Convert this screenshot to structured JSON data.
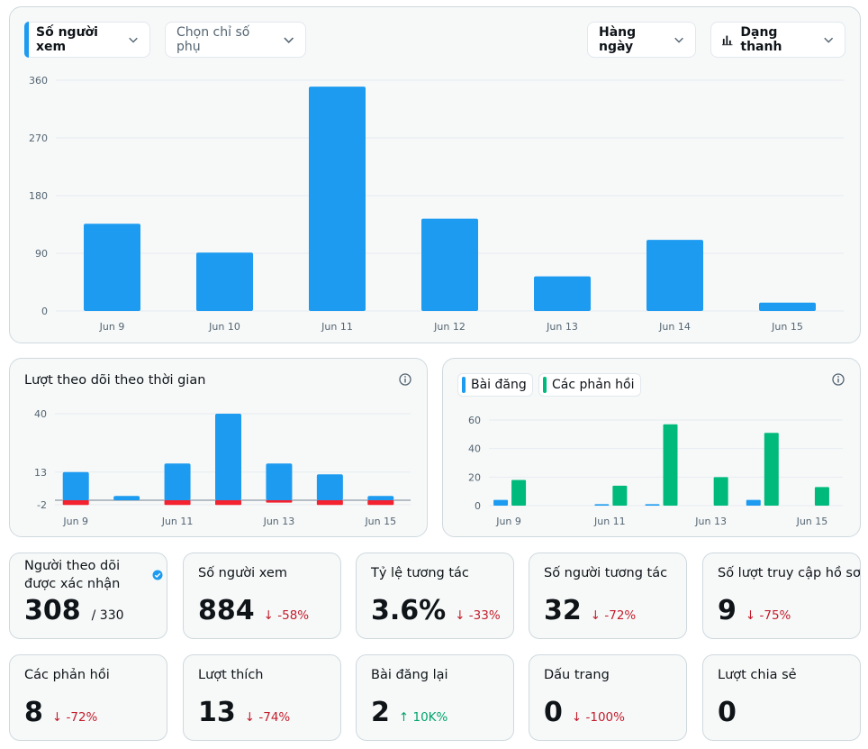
{
  "colors": {
    "blue": "#1d9bf0",
    "red": "#f4212e",
    "green": "#00ba7c",
    "grid": "#e7ecf0",
    "axis_text": "#536471"
  },
  "toolbar": {
    "metric": "Số người xem",
    "secondary": "Chọn chỉ số phụ",
    "period": "Hàng ngày",
    "chart_type": "Dạng thanh",
    "icons": [
      "chevron-down-icon",
      "bar-chart-icon"
    ]
  },
  "followers_panel": {
    "title": "Lượt theo dõi theo thời gian",
    "icon": "info-icon"
  },
  "posts_panel": {
    "legend_posts": "Bài đăng",
    "legend_replies": "Các phản hồi",
    "icon": "info-icon"
  },
  "chart_data": [
    {
      "type": "bar",
      "categories": [
        "Jun 9",
        "Jun 10",
        "Jun 11",
        "Jun 12",
        "Jun 13",
        "Jun 14",
        "Jun 15"
      ],
      "values": [
        136,
        91,
        350,
        144,
        54,
        111,
        13
      ],
      "yticks": [
        0,
        90,
        180,
        270,
        360
      ],
      "ylim": [
        0,
        360
      ],
      "grid": true,
      "color": "#1d9bf0"
    },
    {
      "type": "bar",
      "categories": [
        "Jun 9",
        "Jun 10",
        "Jun 11",
        "Jun 12",
        "Jun 13",
        "Jun 14",
        "Jun 15"
      ],
      "xticklabels": [
        "Jun 9",
        "Jun 11",
        "Jun 13",
        "Jun 15"
      ],
      "series": [
        {
          "values": [
            13,
            2,
            17,
            40,
            17,
            12,
            2
          ],
          "color": "#1d9bf0"
        },
        {
          "values": [
            -2,
            0,
            -2,
            -2,
            -1,
            -2,
            -2
          ],
          "color": "#f4212e"
        }
      ],
      "yticks": [
        -2,
        13,
        40
      ],
      "ylim": [
        -2,
        40
      ],
      "grid": true
    },
    {
      "type": "bar",
      "categories": [
        "Jun 9",
        "Jun 10",
        "Jun 11",
        "Jun 12",
        "Jun 13",
        "Jun 14",
        "Jun 15"
      ],
      "xticklabels": [
        "Jun 9",
        "Jun 11",
        "Jun 13",
        "Jun 15"
      ],
      "series": [
        {
          "name": "Bài đăng",
          "values": [
            4,
            0,
            1,
            1,
            0,
            4,
            0
          ],
          "color": "#1d9bf0"
        },
        {
          "name": "Các phản hồi",
          "values": [
            18,
            0,
            14,
            57,
            20,
            51,
            13
          ],
          "color": "#00ba7c"
        }
      ],
      "yticks": [
        0,
        20,
        40,
        60
      ],
      "ylim": [
        0,
        60
      ],
      "grid": true
    }
  ],
  "stats_row1": [
    {
      "label": "Người theo dõi\nđược xác nhận",
      "value": "308",
      "sub": "/ 330",
      "icon": "verified-badge-icon"
    },
    {
      "label": "Số người xem",
      "value": "884",
      "change": "↓ -58%",
      "trend": "down"
    },
    {
      "label": "Tỷ lệ tương tác",
      "value": "3.6%",
      "change": "↓ -33%",
      "trend": "down"
    },
    {
      "label": "Số người tương tác",
      "value": "32",
      "change": "↓ -72%",
      "trend": "down"
    },
    {
      "label": "Số lượt truy cập hồ sơ",
      "value": "9",
      "change": "↓ -75%",
      "trend": "down"
    }
  ],
  "stats_row2": [
    {
      "label": "Các phản hồi",
      "value": "8",
      "change": "↓ -72%",
      "trend": "down"
    },
    {
      "label": "Lượt thích",
      "value": "13",
      "change": "↓ -74%",
      "trend": "down"
    },
    {
      "label": "Bài đăng lại",
      "value": "2",
      "change": "↑ 10K%",
      "trend": "up"
    },
    {
      "label": "Dấu trang",
      "value": "0",
      "change": "↓ -100%",
      "trend": "down"
    },
    {
      "label": "Lượt chia sẻ",
      "value": "0",
      "change": "",
      "trend": "none"
    }
  ]
}
